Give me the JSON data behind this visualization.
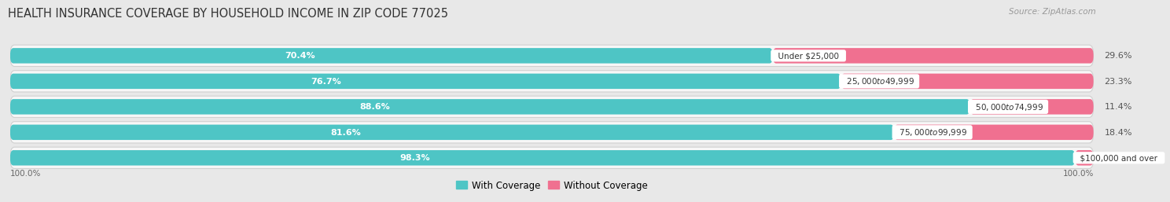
{
  "title": "HEALTH INSURANCE COVERAGE BY HOUSEHOLD INCOME IN ZIP CODE 77025",
  "source": "Source: ZipAtlas.com",
  "categories": [
    "Under $25,000",
    "$25,000 to $49,999",
    "$50,000 to $74,999",
    "$75,000 to $99,999",
    "$100,000 and over"
  ],
  "with_coverage": [
    70.4,
    76.7,
    88.6,
    81.6,
    98.3
  ],
  "without_coverage": [
    29.6,
    23.3,
    11.4,
    18.4,
    1.7
  ],
  "color_with": "#4EC5C5",
  "color_without": "#F07090",
  "bg_color": "#e8e8e8",
  "bar_bg_color": "#f7f7f7",
  "row_shadow_color": "#d0d0d0",
  "title_fontsize": 10.5,
  "label_fontsize": 8.0,
  "tick_fontsize": 7.5,
  "legend_fontsize": 8.5,
  "source_fontsize": 7.5
}
